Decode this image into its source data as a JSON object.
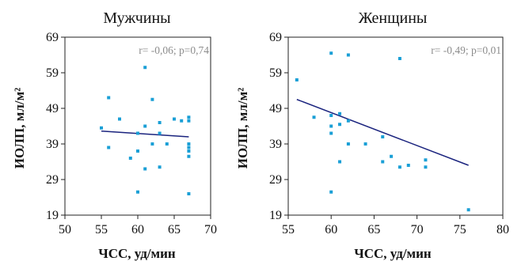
{
  "chart_data": [
    {
      "type": "scatter",
      "title": "Мужчины",
      "xlabel": "ЧСС, уд/мин",
      "ylabel": "ИОЛП, мл/м²",
      "xlim": [
        50,
        70
      ],
      "ylim": [
        19,
        69
      ],
      "xticks": [
        "50",
        "55",
        "60",
        "65",
        "70"
      ],
      "yticks": [
        "19",
        "29",
        "39",
        "49",
        "59",
        "69"
      ],
      "annotation": "r= -0,06; p=0,74",
      "grid": false,
      "marker_color": "#1a9fd6",
      "line_color": "#1a237e",
      "points": [
        {
          "x": 55,
          "y": 43.5
        },
        {
          "x": 56,
          "y": 52
        },
        {
          "x": 56,
          "y": 38
        },
        {
          "x": 57.5,
          "y": 46
        },
        {
          "x": 59,
          "y": 35
        },
        {
          "x": 60,
          "y": 42
        },
        {
          "x": 60,
          "y": 37
        },
        {
          "x": 60,
          "y": 25.5
        },
        {
          "x": 61,
          "y": 60.5
        },
        {
          "x": 61,
          "y": 44
        },
        {
          "x": 61,
          "y": 32
        },
        {
          "x": 62,
          "y": 51.5
        },
        {
          "x": 62,
          "y": 39
        },
        {
          "x": 63,
          "y": 45
        },
        {
          "x": 63,
          "y": 42
        },
        {
          "x": 63,
          "y": 32.5
        },
        {
          "x": 64,
          "y": 39
        },
        {
          "x": 65,
          "y": 46
        },
        {
          "x": 66,
          "y": 45.5
        },
        {
          "x": 67,
          "y": 46.5
        },
        {
          "x": 67,
          "y": 45.5
        },
        {
          "x": 67,
          "y": 39
        },
        {
          "x": 67,
          "y": 38
        },
        {
          "x": 67,
          "y": 37
        },
        {
          "x": 67,
          "y": 35.5
        },
        {
          "x": 67,
          "y": 25
        }
      ],
      "trend": {
        "x": [
          55,
          67
        ],
        "y": [
          42.6,
          41
        ]
      }
    },
    {
      "type": "scatter",
      "title": "Женщины",
      "xlabel": "ЧСС, уд/мин",
      "ylabel": "ИОЛП, мл/м²",
      "xlim": [
        55,
        80
      ],
      "ylim": [
        19,
        69
      ],
      "xticks": [
        "55",
        "60",
        "65",
        "70",
        "75",
        "80"
      ],
      "yticks": [
        "19",
        "29",
        "39",
        "49",
        "59",
        "69"
      ],
      "annotation": "r= -0,49; p=0,01",
      "grid": false,
      "marker_color": "#1a9fd6",
      "line_color": "#1a237e",
      "points": [
        {
          "x": 56,
          "y": 57
        },
        {
          "x": 58,
          "y": 46.5
        },
        {
          "x": 60,
          "y": 64.5
        },
        {
          "x": 60,
          "y": 47
        },
        {
          "x": 60,
          "y": 44
        },
        {
          "x": 60,
          "y": 42
        },
        {
          "x": 60,
          "y": 25.5
        },
        {
          "x": 61,
          "y": 47.5
        },
        {
          "x": 61,
          "y": 44.5
        },
        {
          "x": 61,
          "y": 34
        },
        {
          "x": 62,
          "y": 64
        },
        {
          "x": 62,
          "y": 45.5
        },
        {
          "x": 62,
          "y": 39
        },
        {
          "x": 64,
          "y": 39
        },
        {
          "x": 66,
          "y": 41
        },
        {
          "x": 66,
          "y": 34
        },
        {
          "x": 67,
          "y": 35.5
        },
        {
          "x": 68,
          "y": 63
        },
        {
          "x": 68,
          "y": 32.5
        },
        {
          "x": 69,
          "y": 33
        },
        {
          "x": 71,
          "y": 34.5
        },
        {
          "x": 71,
          "y": 32.5
        },
        {
          "x": 76,
          "y": 20.5
        }
      ],
      "trend": {
        "x": [
          56,
          76
        ],
        "y": [
          51.5,
          33
        ]
      }
    }
  ]
}
